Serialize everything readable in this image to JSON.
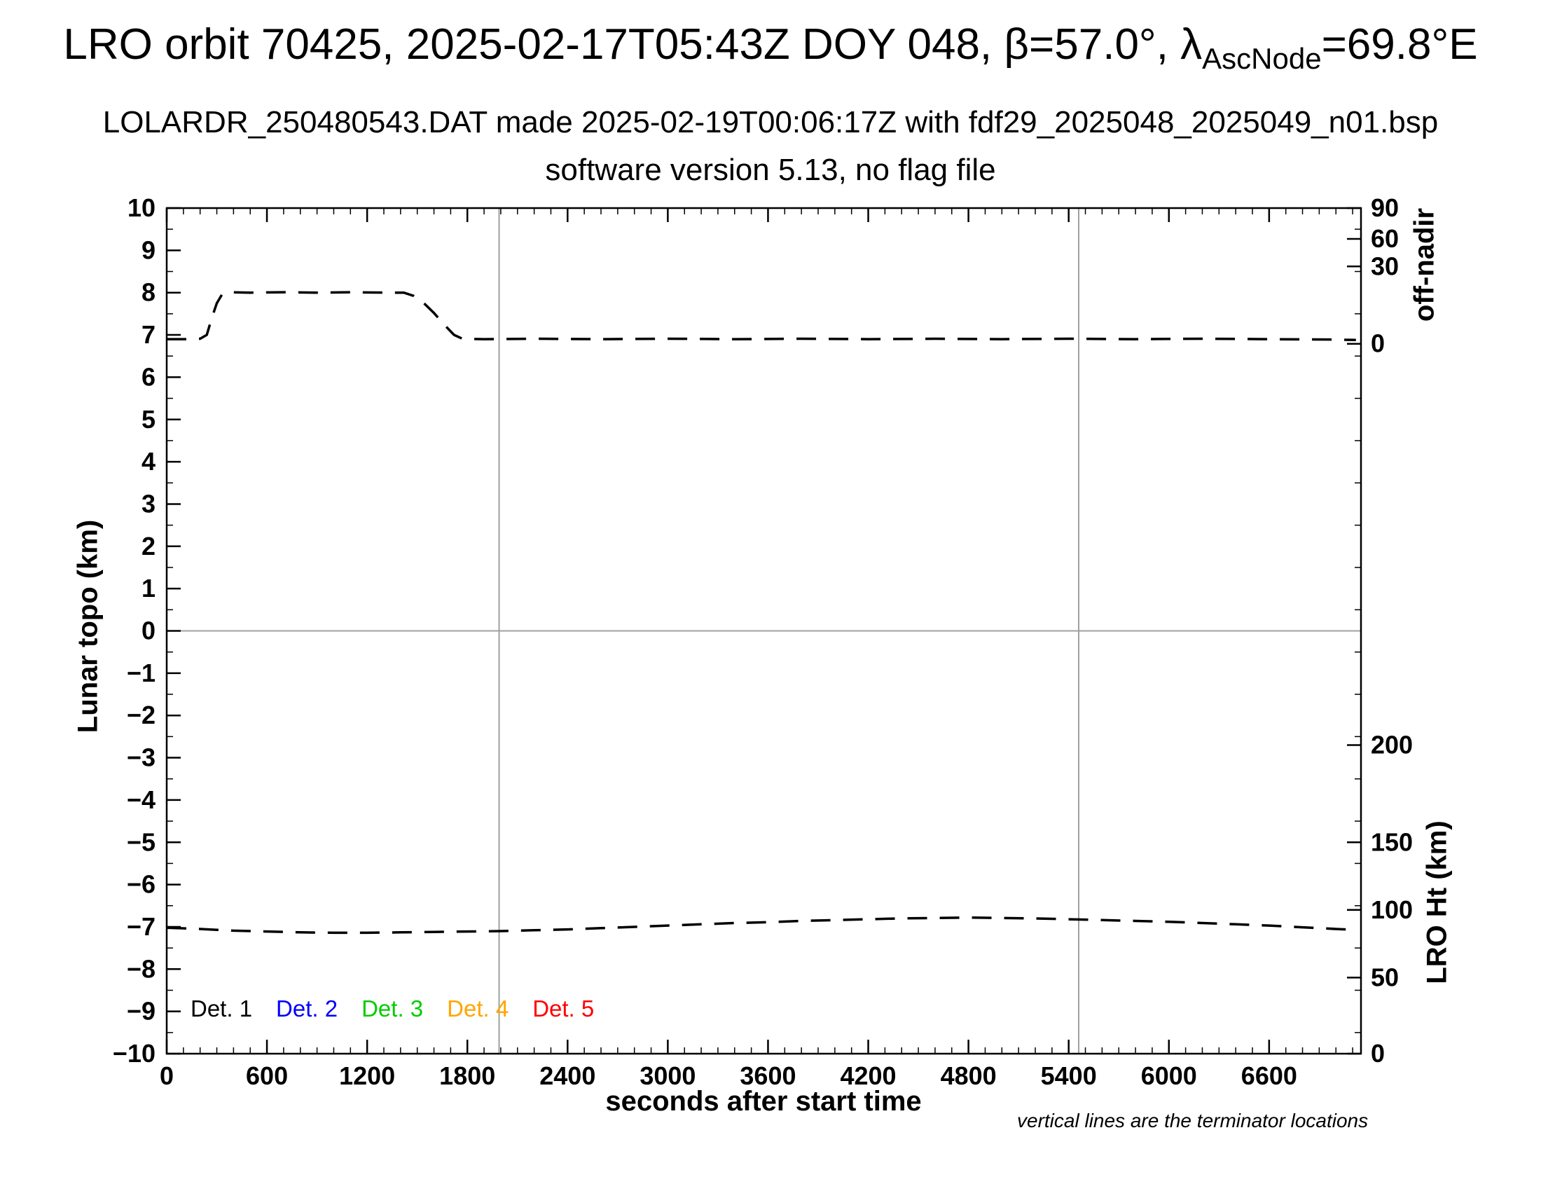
{
  "header": {
    "title_main": "LRO orbit 70425, 2025-02-17T05:43Z DOY 048, β=57.0°, λ",
    "title_sub": "AscNode",
    "title_tail": "=69.8°E",
    "subtitle": "LOLARDR_250480543.DAT made 2025-02-19T00:06:17Z with fdf29_2025048_2025049_n01.bsp",
    "software_line": "software version 5.13, no flag file"
  },
  "footnote": "vertical lines are the terminator locations",
  "chart_data": {
    "type": "line",
    "title": "LRO orbit 70425, 2025-02-17T05:43Z DOY 048, β=57.0°, λAscNode=69.8°E",
    "xlabel": "seconds after start time",
    "ylabel_left": "Lunar topo (km)",
    "ylabel_right_top": "off-nadir",
    "ylabel_right_bottom": "LRO Ht (km)",
    "xlim": [
      0,
      7150
    ],
    "ylim": [
      -10,
      10
    ],
    "x_major_step": 600,
    "x_minor_step": 100,
    "x_major_ticks": [
      0,
      600,
      1200,
      1800,
      2400,
      3000,
      3600,
      4200,
      4800,
      5400,
      6000,
      6600
    ],
    "y_major_step": 1,
    "y_minor_step": 0.5,
    "right_top_ticks": [
      {
        "label": "90",
        "y": 10.0
      },
      {
        "label": "60",
        "y": 9.27
      },
      {
        "label": "30",
        "y": 8.62
      },
      {
        "label": "0",
        "y": 6.79
      }
    ],
    "right_bottom_ticks": [
      {
        "label": "200",
        "y": -2.7
      },
      {
        "label": "150",
        "y": -5.0
      },
      {
        "label": "100",
        "y": -6.6
      },
      {
        "label": "50",
        "y": -8.2
      },
      {
        "label": "0",
        "y": -10.0
      }
    ],
    "terminator_lines_x": [
      1990,
      5460
    ],
    "zero_line_y": 0,
    "guide_color": "#a0a0a0",
    "legend": [
      {
        "label": "Det. 1",
        "color": "#000000"
      },
      {
        "label": "Det. 2",
        "color": "#0000ff"
      },
      {
        "label": "Det. 3",
        "color": "#00cc00"
      },
      {
        "label": "Det. 4",
        "color": "#ffa500"
      },
      {
        "label": "Det. 5",
        "color": "#ff0000"
      }
    ],
    "series": [
      {
        "name": "off-nadir-angle",
        "axis": "right-top",
        "color": "#000000",
        "dash": "28 18",
        "points": [
          [
            0,
            6.9
          ],
          [
            120,
            6.9
          ],
          [
            200,
            6.91
          ],
          [
            240,
            7.0
          ],
          [
            270,
            7.4
          ],
          [
            300,
            7.75
          ],
          [
            330,
            7.95
          ],
          [
            370,
            8.01
          ],
          [
            500,
            8.0
          ],
          [
            700,
            8.01
          ],
          [
            900,
            8.0
          ],
          [
            1100,
            8.01
          ],
          [
            1300,
            8.0
          ],
          [
            1420,
            8.0
          ],
          [
            1480,
            7.92
          ],
          [
            1540,
            7.75
          ],
          [
            1600,
            7.52
          ],
          [
            1660,
            7.25
          ],
          [
            1720,
            7.0
          ],
          [
            1770,
            6.91
          ],
          [
            1900,
            6.9
          ],
          [
            2200,
            6.91
          ],
          [
            2600,
            6.9
          ],
          [
            3000,
            6.91
          ],
          [
            3400,
            6.9
          ],
          [
            3800,
            6.91
          ],
          [
            4200,
            6.9
          ],
          [
            4600,
            6.91
          ],
          [
            5000,
            6.9
          ],
          [
            5400,
            6.91
          ],
          [
            5800,
            6.9
          ],
          [
            6200,
            6.91
          ],
          [
            6600,
            6.9
          ],
          [
            7000,
            6.89
          ],
          [
            7120,
            6.88
          ]
        ]
      },
      {
        "name": "lro-height",
        "axis": "right-bottom",
        "color": "#000000",
        "dash": "28 18",
        "points": [
          [
            0,
            -7.02
          ],
          [
            200,
            -7.05
          ],
          [
            400,
            -7.09
          ],
          [
            600,
            -7.11
          ],
          [
            800,
            -7.13
          ],
          [
            1000,
            -7.14
          ],
          [
            1200,
            -7.14
          ],
          [
            1400,
            -7.13
          ],
          [
            1600,
            -7.12
          ],
          [
            1800,
            -7.11
          ],
          [
            2000,
            -7.1
          ],
          [
            2200,
            -7.08
          ],
          [
            2400,
            -7.06
          ],
          [
            2600,
            -7.03
          ],
          [
            2800,
            -7.0
          ],
          [
            3000,
            -6.97
          ],
          [
            3200,
            -6.94
          ],
          [
            3400,
            -6.91
          ],
          [
            3600,
            -6.89
          ],
          [
            3800,
            -6.86
          ],
          [
            4000,
            -6.84
          ],
          [
            4200,
            -6.82
          ],
          [
            4400,
            -6.8
          ],
          [
            4600,
            -6.79
          ],
          [
            4800,
            -6.78
          ],
          [
            5000,
            -6.79
          ],
          [
            5200,
            -6.8
          ],
          [
            5400,
            -6.82
          ],
          [
            5600,
            -6.84
          ],
          [
            5800,
            -6.86
          ],
          [
            6000,
            -6.88
          ],
          [
            6200,
            -6.91
          ],
          [
            6400,
            -6.94
          ],
          [
            6600,
            -6.97
          ],
          [
            6800,
            -7.01
          ],
          [
            7000,
            -7.05
          ],
          [
            7120,
            -7.07
          ]
        ]
      }
    ]
  }
}
